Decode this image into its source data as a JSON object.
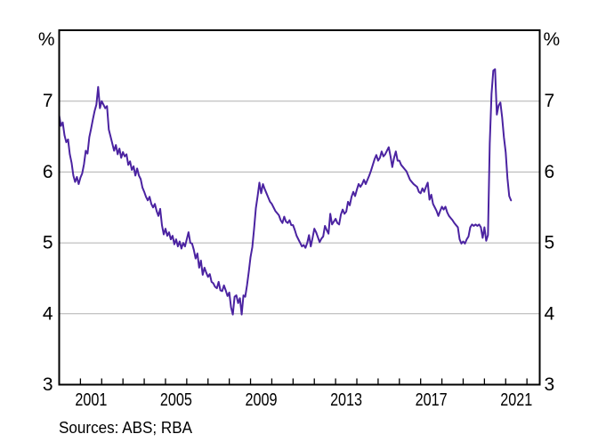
{
  "chart_data": {
    "type": "line",
    "unit_label": "%",
    "source": "Sources: ABS; RBA",
    "colors": {
      "line": "#4b23a1",
      "grid": "#b0b0b0",
      "axis": "#000000",
      "text": "#000000",
      "background": "#ffffff"
    },
    "x_axis": {
      "start": 2000.0,
      "end": 2022.6,
      "tick_years": [
        2001,
        2002,
        2003,
        2004,
        2005,
        2006,
        2007,
        2008,
        2009,
        2010,
        2011,
        2012,
        2013,
        2014,
        2015,
        2016,
        2017,
        2018,
        2019,
        2020,
        2021,
        2022
      ],
      "label_years": [
        2001,
        2005,
        2009,
        2013,
        2017,
        2021
      ],
      "label_offset_years": 0.35
    },
    "y_axis": {
      "min": 3,
      "max": 8,
      "tick_labels": [
        7,
        6,
        5,
        4,
        3
      ],
      "gridlines": [
        4,
        5,
        6,
        7
      ],
      "unit": "%"
    },
    "series": [
      {
        "start_year": 2000,
        "start_month": 1,
        "frequency": "monthly",
        "values": [
          6.8,
          6.65,
          6.7,
          6.52,
          6.42,
          6.46,
          6.25,
          6.13,
          5.95,
          5.86,
          5.93,
          5.83,
          5.92,
          5.98,
          6.11,
          6.3,
          6.26,
          6.49,
          6.61,
          6.74,
          6.86,
          6.95,
          7.2,
          6.9,
          7.0,
          6.95,
          6.9,
          6.93,
          6.6,
          6.5,
          6.4,
          6.3,
          6.38,
          6.25,
          6.33,
          6.2,
          6.28,
          6.22,
          6.25,
          6.1,
          6.15,
          6.03,
          6.08,
          5.95,
          6.05,
          5.95,
          5.9,
          5.78,
          5.72,
          5.65,
          5.6,
          5.65,
          5.55,
          5.5,
          5.55,
          5.45,
          5.38,
          5.48,
          5.25,
          5.12,
          5.2,
          5.1,
          5.15,
          5.05,
          5.1,
          4.98,
          5.05,
          4.95,
          5.02,
          4.92,
          5.0,
          4.95,
          5.05,
          5.15,
          5.0,
          4.99,
          4.9,
          4.78,
          4.85,
          4.65,
          4.75,
          4.55,
          4.65,
          4.58,
          4.52,
          4.56,
          4.45,
          4.43,
          4.38,
          4.36,
          4.45,
          4.33,
          4.32,
          4.4,
          4.33,
          4.25,
          4.3,
          4.09,
          3.99,
          4.24,
          4.26,
          4.15,
          4.22,
          3.99,
          4.26,
          4.24,
          4.4,
          4.59,
          4.8,
          4.94,
          5.2,
          5.49,
          5.66,
          5.85,
          5.7,
          5.83,
          5.76,
          5.7,
          5.64,
          5.58,
          5.55,
          5.5,
          5.45,
          5.42,
          5.39,
          5.32,
          5.28,
          5.37,
          5.3,
          5.28,
          5.32,
          5.25,
          5.25,
          5.18,
          5.1,
          5.05,
          5.0,
          4.95,
          4.97,
          4.93,
          5.0,
          5.11,
          4.95,
          5.07,
          5.2,
          5.15,
          5.08,
          5.01,
          5.06,
          5.09,
          5.24,
          5.18,
          5.13,
          5.41,
          5.26,
          5.3,
          5.34,
          5.28,
          5.26,
          5.4,
          5.47,
          5.41,
          5.44,
          5.58,
          5.53,
          5.65,
          5.72,
          5.66,
          5.75,
          5.83,
          5.79,
          5.83,
          5.89,
          5.83,
          5.89,
          5.95,
          6.02,
          6.1,
          6.18,
          6.24,
          6.16,
          6.2,
          6.29,
          6.22,
          6.25,
          6.3,
          6.35,
          6.22,
          6.07,
          6.2,
          6.29,
          6.16,
          6.16,
          6.1,
          6.07,
          6.04,
          6.01,
          5.95,
          5.89,
          5.86,
          5.83,
          5.81,
          5.79,
          5.72,
          5.7,
          5.77,
          5.72,
          5.79,
          5.85,
          5.61,
          5.68,
          5.55,
          5.5,
          5.45,
          5.38,
          5.45,
          5.51,
          5.47,
          5.51,
          5.43,
          5.38,
          5.35,
          5.32,
          5.28,
          5.25,
          5.22,
          5.05,
          4.99,
          5.02,
          4.99,
          5.05,
          5.09,
          5.22,
          5.26,
          5.24,
          5.26,
          5.24,
          5.26,
          5.22,
          5.07,
          5.22,
          5.03,
          5.11,
          6.4,
          7.1,
          7.43,
          7.45,
          6.81,
          6.94,
          6.98,
          6.77,
          6.49,
          6.28,
          5.91,
          5.66,
          5.6
        ]
      }
    ]
  }
}
